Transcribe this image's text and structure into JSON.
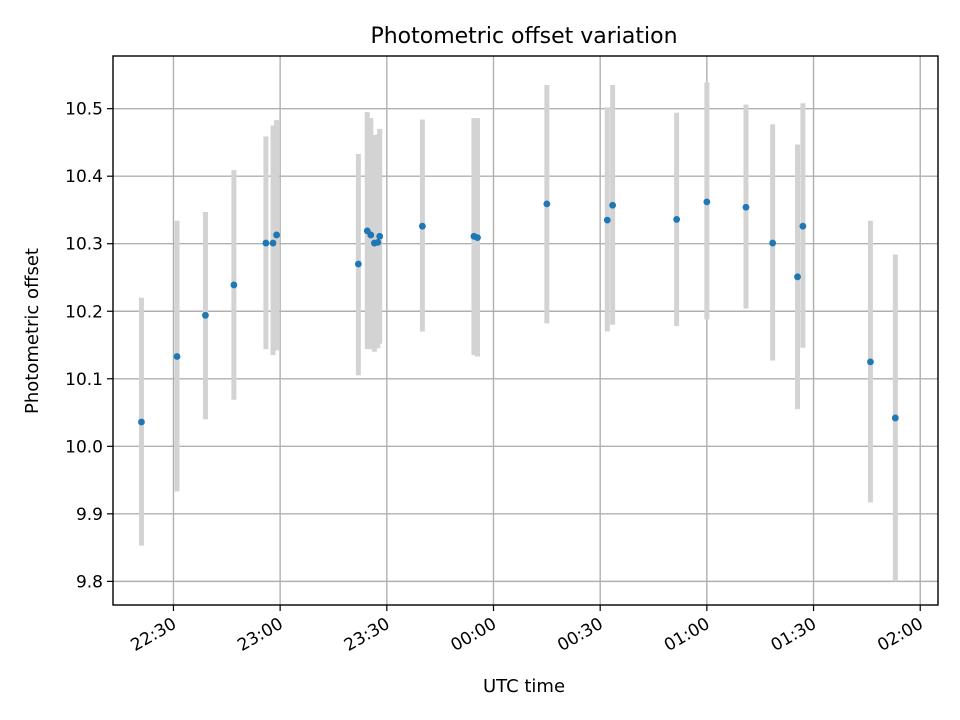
{
  "chart_data": {
    "type": "scatter",
    "title": "Photometric offset variation",
    "xlabel": "UTC time",
    "ylabel": "Photometric offset",
    "x_axis_type": "time",
    "xlim": [
      "22:13",
      "02:05"
    ],
    "ylim": [
      9.765,
      10.578
    ],
    "x_ticks": [
      "22:30",
      "23:00",
      "23:30",
      "00:00",
      "00:30",
      "01:00",
      "01:30",
      "02:00"
    ],
    "y_ticks": [
      9.8,
      9.9,
      10.0,
      10.1,
      10.2,
      10.3,
      10.4,
      10.5
    ],
    "grid": true,
    "marker_color": "#1f77b4",
    "errorbar_color": "#d3d3d3",
    "points": [
      {
        "t": "22:21:00",
        "y": 10.036,
        "lo": 9.853,
        "hi": 10.22
      },
      {
        "t": "22:31:00",
        "y": 10.133,
        "lo": 9.933,
        "hi": 10.334
      },
      {
        "t": "22:39:00",
        "y": 10.194,
        "lo": 10.04,
        "hi": 10.347
      },
      {
        "t": "22:47:00",
        "y": 10.239,
        "lo": 10.069,
        "hi": 10.409
      },
      {
        "t": "22:56:00",
        "y": 10.301,
        "lo": 10.144,
        "hi": 10.459
      },
      {
        "t": "22:58:00",
        "y": 10.301,
        "lo": 10.135,
        "hi": 10.475
      },
      {
        "t": "22:59:00",
        "y": 10.313,
        "lo": 10.142,
        "hi": 10.483
      },
      {
        "t": "23:22:00",
        "y": 10.27,
        "lo": 10.105,
        "hi": 10.433
      },
      {
        "t": "23:24:30",
        "y": 10.319,
        "lo": 10.144,
        "hi": 10.495
      },
      {
        "t": "23:25:30",
        "y": 10.313,
        "lo": 10.144,
        "hi": 10.486
      },
      {
        "t": "23:26:30",
        "y": 10.301,
        "lo": 10.14,
        "hi": 10.461
      },
      {
        "t": "23:27:30",
        "y": 10.302,
        "lo": 10.145,
        "hi": 10.462
      },
      {
        "t": "23:28:00",
        "y": 10.311,
        "lo": 10.152,
        "hi": 10.47
      },
      {
        "t": "23:40:00",
        "y": 10.326,
        "lo": 10.17,
        "hi": 10.484
      },
      {
        "t": "23:54:30",
        "y": 10.311,
        "lo": 10.135,
        "hi": 10.486
      },
      {
        "t": "23:55:30",
        "y": 10.309,
        "lo": 10.133,
        "hi": 10.486
      },
      {
        "t": "00:15:00",
        "y": 10.359,
        "lo": 10.182,
        "hi": 10.535
      },
      {
        "t": "00:32:00",
        "y": 10.335,
        "lo": 10.17,
        "hi": 10.502
      },
      {
        "t": "00:33:30",
        "y": 10.357,
        "lo": 10.18,
        "hi": 10.535
      },
      {
        "t": "00:51:30",
        "y": 10.336,
        "lo": 10.178,
        "hi": 10.494
      },
      {
        "t": "01:00:00",
        "y": 10.362,
        "lo": 10.188,
        "hi": 10.539
      },
      {
        "t": "01:11:00",
        "y": 10.354,
        "lo": 10.204,
        "hi": 10.506
      },
      {
        "t": "01:18:30",
        "y": 10.301,
        "lo": 10.127,
        "hi": 10.477
      },
      {
        "t": "01:25:30",
        "y": 10.251,
        "lo": 10.055,
        "hi": 10.447
      },
      {
        "t": "01:27:00",
        "y": 10.326,
        "lo": 10.146,
        "hi": 10.508
      },
      {
        "t": "01:46:00",
        "y": 10.125,
        "lo": 9.917,
        "hi": 10.334
      },
      {
        "t": "01:53:00",
        "y": 10.042,
        "lo": 9.8,
        "hi": 10.284
      }
    ]
  }
}
